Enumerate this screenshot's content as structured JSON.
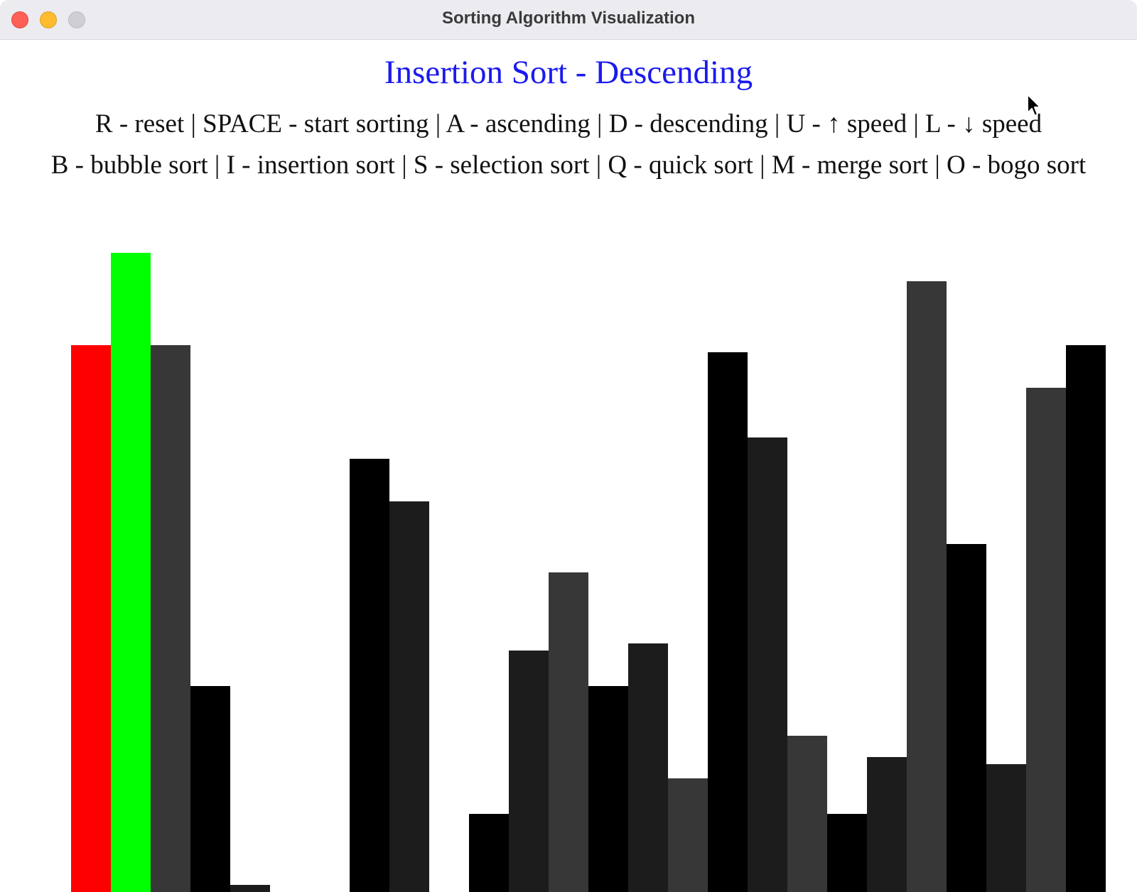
{
  "window": {
    "title": "Sorting Algorithm Visualization"
  },
  "header": {
    "algorithm_title": "Insertion Sort - Descending",
    "help_line_1": "R - reset | SPACE - start sorting | A - ascending | D - descending | U - ↑ speed | L - ↓ speed",
    "help_line_2": "B - bubble sort | I - insertion sort | S  - selection sort | Q - quick sort | M - merge sort | O - bogo sort"
  },
  "colors": {
    "title_blue": "#1a1aee",
    "current_bar": "#ff0000",
    "compare_bar": "#00ff00",
    "bar_shades": [
      "#000000",
      "#1c1c1c",
      "#373737"
    ]
  },
  "icons": {
    "close": "close-icon",
    "minimize": "minimize-icon",
    "maximize": "maximize-icon",
    "cursor": "mouse-cursor-icon"
  },
  "bar_values": [
    770,
    900,
    770,
    290,
    10,
    0,
    0,
    610,
    550,
    0,
    110,
    340,
    450,
    290,
    350,
    160,
    760,
    640,
    220,
    110,
    190,
    860,
    490,
    180,
    710,
    770
  ],
  "bar_states": [
    "current",
    "compare",
    "normal",
    "normal",
    "normal",
    "normal",
    "normal",
    "normal",
    "normal",
    "normal",
    "normal",
    "normal",
    "normal",
    "normal",
    "normal",
    "normal",
    "normal",
    "normal",
    "normal",
    "normal",
    "normal",
    "normal",
    "normal",
    "normal",
    "normal",
    "normal"
  ],
  "bar_shade_index": [
    0,
    0,
    2,
    0,
    1,
    0,
    0,
    0,
    1,
    0,
    0,
    1,
    2,
    0,
    1,
    2,
    0,
    1,
    2,
    0,
    1,
    2,
    0,
    1,
    2,
    0
  ]
}
